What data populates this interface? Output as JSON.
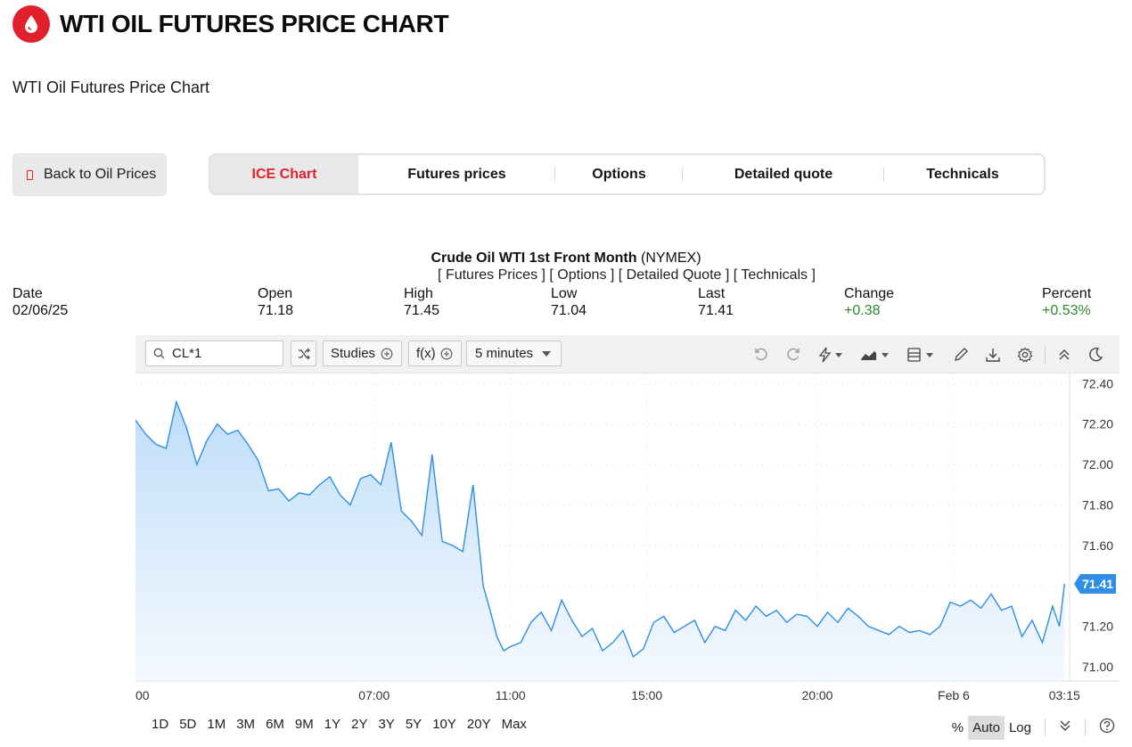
{
  "header": {
    "title": "WTI OIL FUTURES PRICE CHART",
    "subtitle": "WTI Oil Futures Price Chart",
    "logo_icon": "oil-drop-icon",
    "brand_color": "#e0202a"
  },
  "back_button": {
    "label": "Back to Oil Prices"
  },
  "tabs": [
    {
      "label": "ICE Chart",
      "active": true
    },
    {
      "label": "Futures prices",
      "active": false
    },
    {
      "label": "Options",
      "active": false
    },
    {
      "label": "Detailed quote",
      "active": false
    },
    {
      "label": "Technicals",
      "active": false
    }
  ],
  "quote": {
    "name": "Crude Oil WTI 1st Front Month",
    "exchange": "(NYMEX)",
    "links": "[ Futures Prices ] [ Options ] [ Detailed Quote ] [ Technicals ]",
    "stats": [
      {
        "label": "Date",
        "value": "02/06/25"
      },
      {
        "label": "Open",
        "value": "71.18"
      },
      {
        "label": "High",
        "value": "71.45"
      },
      {
        "label": "Low",
        "value": "71.04"
      },
      {
        "label": "Last",
        "value": "71.41"
      },
      {
        "label": "Change",
        "value": "+0.38",
        "color": "#2a8a2a"
      },
      {
        "label": "Percent",
        "value": "+0.53%",
        "color": "#2a8a2a"
      }
    ]
  },
  "toolbar": {
    "symbol": "CL*1",
    "studies_label": "Studies",
    "fx_label": "f(x)",
    "interval_label": "5 minutes",
    "icons": [
      "undo-icon",
      "redo-icon",
      "lightning-icon",
      "area-chart-icon",
      "layout-icon",
      "pencil-icon",
      "download-icon",
      "gear-icon",
      "collapse-icon",
      "moon-icon"
    ]
  },
  "ranges": [
    "1D",
    "5D",
    "1M",
    "3M",
    "6M",
    "9M",
    "1Y",
    "2Y",
    "3Y",
    "5Y",
    "10Y",
    "20Y",
    "Max"
  ],
  "scale_options": {
    "percent": "%",
    "auto": "Auto",
    "log": "Log"
  },
  "chart_data": {
    "type": "area",
    "line_color": "#2f8ee5",
    "fill_color": "#cfe5fb",
    "ylim": [
      70.93,
      72.45
    ],
    "y_ticks": [
      "72.40",
      "72.20",
      "72.00",
      "71.80",
      "71.60",
      "71.40",
      "71.20",
      "71.00"
    ],
    "x_ticks": [
      {
        "label": "00",
        "x": 0
      },
      {
        "label": "07:00",
        "x": 7
      },
      {
        "label": "11:00",
        "x": 11
      },
      {
        "label": "15:00",
        "x": 15
      },
      {
        "label": "20:00",
        "x": 20
      },
      {
        "label": "Feb 6",
        "x": 24
      },
      {
        "label": "03:15",
        "x": 27.25
      }
    ],
    "xlim": [
      0,
      27.4
    ],
    "last_price": "71.41",
    "x": [
      0,
      0.3,
      0.6,
      0.9,
      1.2,
      1.5,
      1.8,
      2.1,
      2.4,
      2.7,
      3.0,
      3.3,
      3.6,
      3.9,
      4.2,
      4.5,
      4.8,
      5.1,
      5.4,
      5.7,
      6.0,
      6.3,
      6.6,
      6.9,
      7.2,
      7.5,
      7.8,
      8.1,
      8.4,
      8.7,
      9.0,
      9.3,
      9.6,
      9.9,
      10.2,
      10.4,
      10.6,
      10.8,
      11.0,
      11.3,
      11.6,
      11.9,
      12.2,
      12.5,
      12.8,
      13.1,
      13.4,
      13.7,
      14.0,
      14.3,
      14.6,
      14.9,
      15.2,
      15.5,
      15.8,
      16.1,
      16.4,
      16.7,
      17.0,
      17.3,
      17.6,
      17.9,
      18.2,
      18.5,
      18.8,
      19.1,
      19.4,
      19.7,
      20.0,
      20.3,
      20.6,
      20.9,
      21.2,
      21.5,
      21.8,
      22.1,
      22.4,
      22.7,
      23.0,
      23.3,
      23.6,
      23.9,
      24.2,
      24.5,
      24.8,
      25.1,
      25.4,
      25.7,
      26.0,
      26.3,
      26.6,
      26.9,
      27.1,
      27.25
    ],
    "y": [
      72.22,
      72.15,
      72.1,
      72.08,
      72.31,
      72.18,
      72.0,
      72.12,
      72.2,
      72.15,
      72.17,
      72.1,
      72.02,
      71.87,
      71.88,
      71.82,
      71.86,
      71.85,
      71.9,
      71.94,
      71.85,
      71.8,
      71.93,
      71.95,
      71.9,
      72.11,
      71.77,
      71.72,
      71.65,
      72.05,
      71.62,
      71.6,
      71.57,
      71.9,
      71.4,
      71.28,
      71.15,
      71.08,
      71.1,
      71.12,
      71.22,
      71.27,
      71.18,
      71.33,
      71.23,
      71.15,
      71.19,
      71.08,
      71.12,
      71.18,
      71.05,
      71.09,
      71.22,
      71.25,
      71.17,
      71.2,
      71.23,
      71.12,
      71.2,
      71.18,
      71.28,
      71.23,
      71.3,
      71.25,
      71.28,
      71.22,
      71.26,
      71.25,
      71.2,
      71.27,
      71.22,
      71.29,
      71.25,
      71.2,
      71.18,
      71.16,
      71.2,
      71.17,
      71.18,
      71.16,
      71.2,
      71.32,
      71.3,
      71.33,
      71.29,
      71.36,
      71.28,
      71.3,
      71.15,
      71.23,
      71.12,
      71.3,
      71.2,
      71.41
    ]
  }
}
